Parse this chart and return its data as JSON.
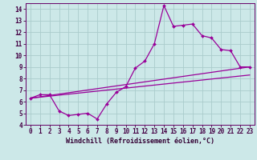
{
  "background_color": "#cce8e8",
  "grid_color": "#aacccc",
  "line_color": "#990099",
  "xlabel": "Windchill (Refroidissement éolien,°C)",
  "xlim": [
    -0.5,
    23.5
  ],
  "ylim": [
    4,
    14.5
  ],
  "xticks": [
    0,
    1,
    2,
    3,
    4,
    5,
    6,
    7,
    8,
    9,
    10,
    11,
    12,
    13,
    14,
    15,
    16,
    17,
    18,
    19,
    20,
    21,
    22,
    23
  ],
  "yticks": [
    4,
    5,
    6,
    7,
    8,
    9,
    10,
    11,
    12,
    13,
    14
  ],
  "series1_x": [
    0,
    1,
    2,
    3,
    4,
    5,
    6,
    7,
    8,
    9,
    10,
    11,
    12,
    13,
    14,
    15,
    16,
    17,
    18,
    19,
    20,
    21,
    22,
    23
  ],
  "series1_y": [
    6.3,
    6.6,
    6.6,
    5.2,
    4.8,
    4.9,
    5.0,
    4.5,
    5.8,
    6.8,
    7.3,
    8.9,
    9.5,
    11.0,
    14.3,
    12.5,
    12.6,
    12.7,
    11.7,
    11.5,
    10.5,
    10.4,
    9.0,
    9.0
  ],
  "series2_x": [
    0,
    23
  ],
  "series2_y": [
    6.3,
    9.0
  ],
  "series3_x": [
    0,
    23
  ],
  "series3_y": [
    6.3,
    8.3
  ],
  "tick_fontsize": 5.5,
  "label_fontsize": 6,
  "marker_size": 2.0,
  "line_width": 0.9
}
